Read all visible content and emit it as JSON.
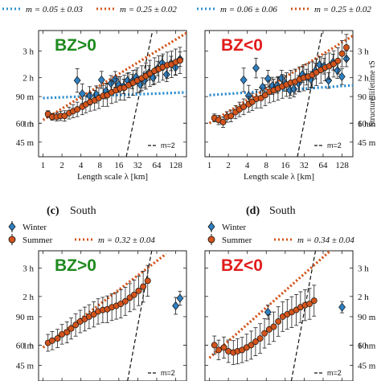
{
  "colors": {
    "winter": "#2f7fc1",
    "summer": "#d2541c",
    "bz_positive": "#1e8a1e",
    "bz_negative": "#e11b1b",
    "fit_winter": "#2f8fd0",
    "fit_summer": "#d2541c",
    "ref_line": "#111111"
  },
  "labels": {
    "caption_c_letter": "(c)",
    "caption_c_word": "South",
    "caption_d_letter": "(d)",
    "caption_d_word": "South",
    "legend_winter": "Winter",
    "legend_summer": "Summer",
    "ref_m2": "m=2"
  },
  "chart_data": [
    {
      "id": "top-left",
      "type": "scatter",
      "annotation": "BZ>0",
      "xlabel": "Length scale λ [km]",
      "ylabel": "",
      "xscale": "log",
      "yscale": "log",
      "xticks": [
        "1",
        "2",
        "4",
        "8",
        "16",
        "32",
        "64",
        "128"
      ],
      "yticks": [
        "45 m",
        "60 m",
        "90 m",
        "1 h",
        "2 h",
        "3 h"
      ],
      "legend": [
        {
          "symbol": "dotted-line",
          "color": "fit_winter",
          "text": "m = 0.05 ± 0.03"
        },
        {
          "symbol": "dotted-line",
          "color": "fit_summer",
          "text": "m = 0.25 ± 0.02"
        }
      ],
      "series": [
        {
          "name": "Winter",
          "x": [
            3.5,
            4.2,
            5.5,
            7,
            8.5,
            10,
            12,
            14,
            16,
            19,
            22,
            26,
            30,
            35,
            41,
            48,
            56,
            66,
            78,
            92,
            108,
            127,
            150
          ],
          "y": [
            115,
            94,
            91,
            93,
            116,
            98,
            110,
            117,
            108,
            105,
            115,
            113,
            121,
            108,
            115,
            129,
            120,
            138,
            150,
            126,
            149,
            140,
            159
          ],
          "err": [
            0.18,
            0.15,
            0.14,
            0.13,
            0.13,
            0.12,
            0.12,
            0.12,
            0.12,
            0.11,
            0.11,
            0.11,
            0.11,
            0.11,
            0.11,
            0.11,
            0.11,
            0.11,
            0.11,
            0.11,
            0.11,
            0.11,
            0.11
          ]
        },
        {
          "name": "Summer",
          "x": [
            1.2,
            1.4,
            1.65,
            1.9,
            2.2,
            2.6,
            3,
            3.5,
            4.2,
            4.8,
            5.6,
            6.6,
            7.7,
            9,
            10.5,
            12.3,
            14.4,
            16.8,
            19.6,
            23,
            27,
            31.5,
            37,
            43,
            50,
            59,
            69,
            80,
            94,
            110,
            128,
            150
          ],
          "y": [
            69,
            66,
            66,
            67,
            67,
            70,
            72,
            74,
            77,
            80,
            83,
            85,
            88,
            91,
            92,
            96,
            99,
            102,
            103,
            107,
            111,
            115,
            119,
            123,
            128,
            133,
            137,
            141,
            145,
            147,
            152,
            156
          ],
          "err": [
            0.05,
            0.05,
            0.06,
            0.07,
            0.08,
            0.09,
            0.1,
            0.11,
            0.12,
            0.13,
            0.14,
            0.15,
            0.16,
            0.16,
            0.17,
            0.17,
            0.18,
            0.18,
            0.19,
            0.19,
            0.19,
            0.19,
            0.19,
            0.2,
            0.2,
            0.2,
            0.2,
            0.2,
            0.2,
            0.2,
            0.2,
            0.2
          ]
        },
        {
          "name": "m = 0.05 ± 0.03",
          "fit_x": [
            1,
            200
          ],
          "fit_y": [
            88,
            96
          ]
        },
        {
          "name": "m = 0.25 ± 0.02",
          "fit_x": [
            1,
            200
          ],
          "fit_y": [
            63,
            240
          ]
        },
        {
          "name": "m=2",
          "line_x": [
            21,
            55
          ],
          "line_y": [
            36,
            246
          ]
        }
      ]
    },
    {
      "id": "top-right",
      "type": "scatter",
      "annotation": "BZ<0",
      "xlabel": "Length scale λ [km]",
      "ylabel": "Structure lifetime τS",
      "xscale": "log",
      "yscale": "log",
      "xticks": [
        "1",
        "2",
        "4",
        "8",
        "16",
        "32",
        "64",
        "128"
      ],
      "yticks": [
        "45 m",
        "60 m",
        "90 m",
        "1 h",
        "2 h",
        "3 h"
      ],
      "legend": [
        {
          "symbol": "dotted-line",
          "color": "fit_winter",
          "text": "m = 0.06 ± 0.06"
        },
        {
          "symbol": "dotted-line",
          "color": "fit_summer",
          "text": "m = 0.25 ± 0.02"
        }
      ],
      "series": [
        {
          "name": "Winter",
          "x": [
            3.5,
            4.2,
            5.5,
            7,
            8.5,
            10,
            12,
            14,
            16,
            19,
            22,
            26,
            30,
            35,
            41,
            48,
            56,
            66,
            78,
            92,
            108,
            127,
            150
          ],
          "y": [
            116,
            91,
            139,
            104,
            118,
            106,
            107,
            119,
            110,
            99,
            101,
            110,
            126,
            121,
            117,
            133,
            146,
            143,
            115,
            152,
            134,
            122,
            160
          ],
          "err": [
            0.18,
            0.16,
            0.15,
            0.14,
            0.13,
            0.13,
            0.12,
            0.12,
            0.12,
            0.12,
            0.12,
            0.12,
            0.12,
            0.12,
            0.12,
            0.12,
            0.12,
            0.12,
            0.12,
            0.12,
            0.12,
            0.12,
            0.12
          ]
        },
        {
          "name": "Summer",
          "x": [
            1.2,
            1.4,
            1.65,
            1.9,
            2.2,
            2.6,
            3,
            3.5,
            4.2,
            4.8,
            5.6,
            6.6,
            7.7,
            9,
            10.5,
            12.3,
            14.4,
            16.8,
            19.6,
            23,
            27,
            31.5,
            37,
            43,
            50,
            59,
            69,
            80,
            94,
            110,
            128,
            150
          ],
          "y": [
            65,
            63,
            61,
            66,
            67,
            71,
            74,
            77,
            80,
            83,
            87,
            88,
            92,
            97,
            99,
            102,
            105,
            108,
            111,
            113,
            117,
            120,
            122,
            125,
            130,
            135,
            140,
            143,
            148,
            155,
            173,
            190
          ],
          "err": [
            0.06,
            0.07,
            0.08,
            0.08,
            0.09,
            0.1,
            0.11,
            0.12,
            0.12,
            0.13,
            0.14,
            0.15,
            0.16,
            0.17,
            0.17,
            0.18,
            0.18,
            0.18,
            0.19,
            0.19,
            0.19,
            0.2,
            0.2,
            0.2,
            0.2,
            0.2,
            0.2,
            0.2,
            0.2,
            0.2,
            0.2,
            0.2
          ]
        },
        {
          "name": "m = 0.06 ± 0.06",
          "fit_x": [
            1,
            200
          ],
          "fit_y": [
            92,
            107
          ]
        },
        {
          "name": "m = 0.25 ± 0.02",
          "fit_x": [
            1,
            200
          ],
          "fit_y": [
            60,
            230
          ]
        },
        {
          "name": "m=2",
          "line_x": [
            25,
            62
          ],
          "line_y": [
            36,
            246
          ]
        }
      ]
    },
    {
      "id": "bottom-left",
      "type": "scatter",
      "annotation": "BZ>0",
      "xlabel": "",
      "ylabel": "",
      "xscale": "log",
      "yscale": "log",
      "yticks": [
        "45 m",
        "60 m",
        "90 m",
        "1 h",
        "2 h",
        "3 h"
      ],
      "legend": [
        {
          "symbol": "diamond",
          "color": "winter",
          "text": "Winter"
        },
        {
          "symbol": "circle",
          "color": "summer",
          "text": "Summer"
        },
        {
          "symbol": "dotted-line",
          "color": "fit_summer",
          "text": "m = 0.32 ± 0.04"
        }
      ],
      "series": [
        {
          "name": "Winter",
          "x": [
            128,
            150
          ],
          "y": [
            105,
            117
          ],
          "err": [
            0.12,
            0.1
          ]
        },
        {
          "name": "Summer",
          "x": [
            1.2,
            1.4,
            1.7,
            2,
            2.4,
            2.8,
            3.3,
            3.9,
            4.6,
            5.4,
            6.4,
            7.5,
            8.9,
            10.5,
            12.4,
            14.6,
            17.2,
            20.3,
            24,
            28,
            33,
            39,
            46
          ],
          "y": [
            62,
            64,
            66,
            70,
            72,
            76,
            80,
            84,
            87,
            90,
            93,
            97,
            99,
            100,
            103,
            105,
            108,
            112,
            118,
            123,
            130,
            138,
            150
          ],
          "err": [
            0.12,
            0.13,
            0.13,
            0.14,
            0.15,
            0.15,
            0.16,
            0.16,
            0.17,
            0.17,
            0.18,
            0.18,
            0.18,
            0.19,
            0.19,
            0.19,
            0.2,
            0.2,
            0.2,
            0.21,
            0.21,
            0.22,
            0.22
          ]
        },
        {
          "name": "m = 0.32 ± 0.04",
          "fit_x": [
            1,
            90
          ],
          "fit_y": [
            58,
            220
          ]
        },
        {
          "name": "m=2",
          "line_x": [
            22,
            55
          ],
          "line_y": [
            36,
            246
          ]
        }
      ]
    },
    {
      "id": "bottom-right",
      "type": "scatter",
      "annotation": "BZ<0",
      "xlabel": "",
      "ylabel": "",
      "xscale": "log",
      "yscale": "log",
      "yticks": [
        "45 m",
        "60 m",
        "90 m",
        "1 h",
        "2 h",
        "3 h"
      ],
      "legend": [
        {
          "symbol": "diamond",
          "color": "winter",
          "text": "Winter"
        },
        {
          "symbol": "circle",
          "color": "summer",
          "text": "Summer"
        },
        {
          "symbol": "dotted-line",
          "color": "fit_summer",
          "text": "m = 0.34 ± 0.04"
        }
      ],
      "series": [
        {
          "name": "Winter",
          "x": [
            8.5,
            128
          ],
          "y": [
            96,
            103
          ],
          "err": [
            0.1,
            0.08
          ]
        },
        {
          "name": "Summer",
          "x": [
            1.2,
            1.4,
            1.7,
            2,
            2.4,
            2.8,
            3.3,
            3.9,
            4.6,
            5.4,
            6.4,
            7.5,
            8.9,
            10.5,
            12.4,
            14.6,
            17.2,
            20.3,
            24,
            28,
            33,
            39,
            46
          ],
          "y": [
            60,
            56,
            58,
            55,
            54,
            55,
            56,
            58,
            60,
            63,
            66,
            71,
            75,
            78,
            84,
            90,
            93,
            96,
            99,
            103,
            106,
            108,
            113
          ],
          "err": [
            0.13,
            0.14,
            0.15,
            0.16,
            0.17,
            0.18,
            0.18,
            0.19,
            0.2,
            0.2,
            0.21,
            0.21,
            0.21,
            0.21,
            0.21,
            0.21,
            0.21,
            0.22,
            0.22,
            0.22,
            0.22,
            0.22,
            0.22
          ]
        },
        {
          "name": "m = 0.34 ± 0.04",
          "fit_x": [
            1,
            100
          ],
          "fit_y": [
            50,
            245
          ]
        },
        {
          "name": "m=2",
          "line_x": [
            20,
            50
          ],
          "line_y": [
            36,
            246
          ]
        }
      ]
    }
  ]
}
